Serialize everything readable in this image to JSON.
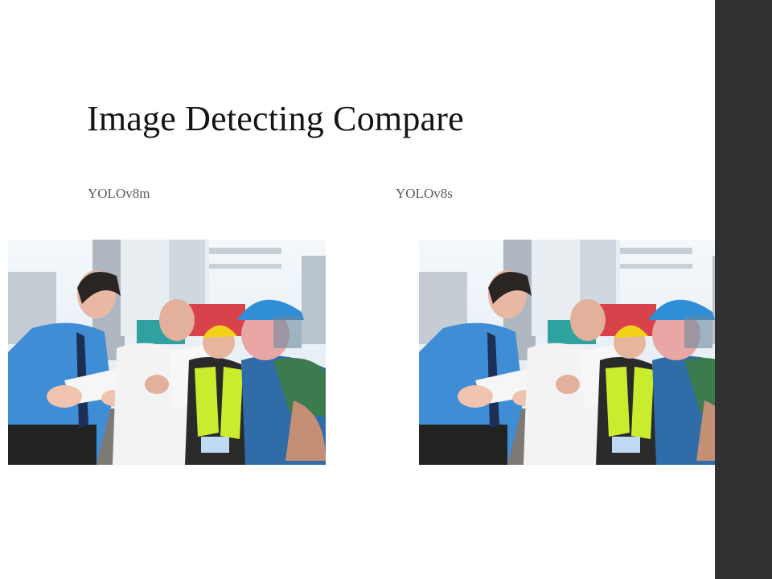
{
  "slide": {
    "title": "Image Detecting Compare",
    "left_panel": {
      "label": "YOLOv8m",
      "image": "site-workers-photo"
    },
    "right_panel": {
      "label": "YOLOv8s",
      "image": "site-workers-photo"
    }
  },
  "colors": {
    "side_band": "#313133",
    "background": "#ffffff",
    "title_text": "#141414",
    "label_text": "#5a5a5a"
  }
}
